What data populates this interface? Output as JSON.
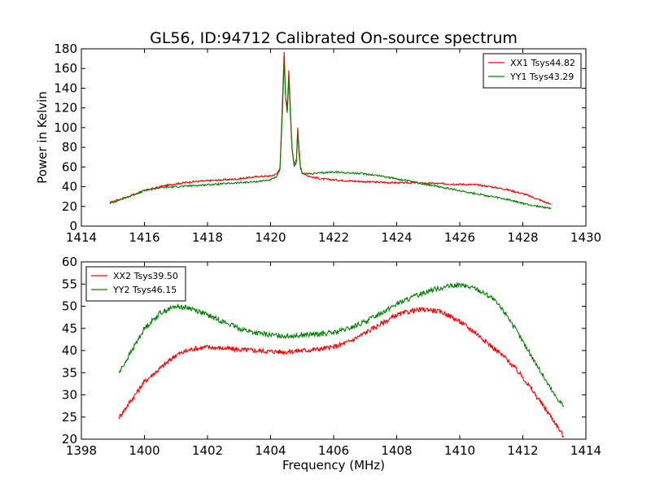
{
  "figure_title": "GL56, ID:94712 Calibrated On-source spectrum",
  "colors": {
    "xx": "#ff0000",
    "yy": "#008000",
    "axes": "#000000",
    "background": "#ffffff"
  },
  "chart_data": [
    {
      "type": "line",
      "title": "GL56, ID:94712 Calibrated On-source spectrum",
      "xlabel": "",
      "ylabel": "Power in Kelvin",
      "xlim": [
        1414,
        1430
      ],
      "ylim": [
        0,
        180
      ],
      "xticks": [
        1414,
        1416,
        1418,
        1420,
        1422,
        1424,
        1426,
        1428,
        1430
      ],
      "yticks": [
        0,
        20,
        40,
        60,
        80,
        100,
        120,
        140,
        160,
        180
      ],
      "grid": false,
      "legend_position": "top-right",
      "series": [
        {
          "name": "XX1 Tsys44.82",
          "color": "#ff0000",
          "x": [
            1414.9,
            1415.5,
            1416.0,
            1416.5,
            1417.0,
            1417.5,
            1418.0,
            1418.5,
            1419.0,
            1419.5,
            1420.0,
            1420.2,
            1420.3,
            1420.38,
            1420.43,
            1420.48,
            1420.53,
            1420.58,
            1420.63,
            1420.68,
            1420.75,
            1420.82,
            1420.86,
            1420.9,
            1420.95,
            1421.0,
            1421.1,
            1421.3,
            1421.6,
            1422.0,
            1422.5,
            1423.0,
            1423.5,
            1424.0,
            1424.5,
            1425.0,
            1425.5,
            1426.0,
            1426.5,
            1427.0,
            1427.5,
            1428.0,
            1428.5,
            1428.9
          ],
          "y": [
            24,
            30,
            36,
            40,
            43,
            45,
            46,
            47,
            48,
            50,
            51,
            53,
            60,
            130,
            177,
            130,
            120,
            158,
            118,
            80,
            62,
            68,
            100,
            80,
            60,
            55,
            52,
            50,
            48,
            47,
            46,
            45,
            44.5,
            44,
            44,
            43.5,
            43,
            42.5,
            42,
            40,
            37,
            33,
            27,
            22
          ]
        },
        {
          "name": "YY1 Tsys43.29",
          "color": "#008000",
          "x": [
            1414.9,
            1415.5,
            1416.0,
            1416.5,
            1417.0,
            1417.5,
            1418.0,
            1418.5,
            1419.0,
            1419.5,
            1420.0,
            1420.2,
            1420.3,
            1420.38,
            1420.43,
            1420.48,
            1420.53,
            1420.58,
            1420.63,
            1420.68,
            1420.75,
            1420.82,
            1420.86,
            1420.9,
            1420.95,
            1421.0,
            1421.2,
            1421.6,
            1422.0,
            1422.5,
            1423.0,
            1423.5,
            1424.0,
            1424.5,
            1425.0,
            1425.5,
            1426.0,
            1426.5,
            1427.0,
            1427.5,
            1428.0,
            1428.5,
            1428.9
          ],
          "y": [
            23,
            30,
            36,
            39,
            40,
            41,
            42,
            43,
            44,
            45,
            47,
            50,
            58,
            120,
            168,
            128,
            115,
            150,
            112,
            78,
            60,
            65,
            95,
            75,
            58,
            54,
            53,
            54,
            55,
            54,
            53,
            51,
            48,
            45,
            42,
            39,
            36,
            33,
            30,
            27,
            23,
            20,
            18
          ]
        }
      ]
    },
    {
      "type": "line",
      "title": "",
      "xlabel": "Frequency (MHz)",
      "ylabel": "",
      "xlim": [
        1398,
        1414
      ],
      "ylim": [
        20,
        60
      ],
      "xticks": [
        1398,
        1400,
        1402,
        1404,
        1406,
        1408,
        1410,
        1412,
        1414
      ],
      "yticks": [
        20,
        25,
        30,
        35,
        40,
        45,
        50,
        55,
        60
      ],
      "grid": false,
      "legend_position": "top-left",
      "series": [
        {
          "name": "XX2 Tsys39.50",
          "color": "#ff0000",
          "x": [
            1399.2,
            1399.6,
            1400.0,
            1400.5,
            1401.0,
            1401.5,
            1402.0,
            1402.5,
            1403.0,
            1403.5,
            1404.0,
            1404.5,
            1405.0,
            1405.5,
            1406.0,
            1406.5,
            1407.0,
            1407.5,
            1408.0,
            1408.5,
            1409.0,
            1409.5,
            1410.0,
            1410.5,
            1411.0,
            1411.5,
            1412.0,
            1412.5,
            1413.0,
            1413.3
          ],
          "y": [
            25,
            29,
            33,
            36,
            39,
            40.3,
            40.8,
            40.5,
            40.2,
            40,
            39.8,
            39.7,
            40,
            40.3,
            40.8,
            42,
            44,
            46,
            48,
            49,
            49.3,
            48.5,
            46.5,
            44,
            41,
            38,
            34,
            29,
            24,
            20.5
          ]
        },
        {
          "name": "YY2 Tsys46.15",
          "color": "#008000",
          "x": [
            1399.2,
            1399.6,
            1400.0,
            1400.5,
            1401.0,
            1401.5,
            1402.0,
            1402.5,
            1403.0,
            1403.5,
            1404.0,
            1404.5,
            1405.0,
            1405.5,
            1406.0,
            1406.5,
            1407.0,
            1407.5,
            1408.0,
            1408.5,
            1409.0,
            1409.5,
            1410.0,
            1410.5,
            1411.0,
            1411.5,
            1412.0,
            1412.5,
            1413.0,
            1413.3
          ],
          "y": [
            35,
            40,
            45,
            48.5,
            50,
            49.5,
            48,
            46.5,
            45,
            44,
            43.5,
            43.3,
            43.5,
            43.7,
            44,
            45,
            46.5,
            48.5,
            50.5,
            52,
            53.5,
            54.3,
            54.8,
            54,
            52,
            48,
            42,
            36,
            30,
            27.5
          ]
        }
      ]
    }
  ]
}
